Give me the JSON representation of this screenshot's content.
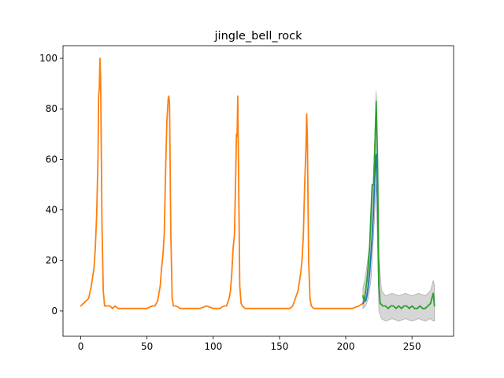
{
  "chart_data": {
    "type": "line",
    "title": "jingle_bell_rock",
    "xlabel": "",
    "ylabel": "",
    "xlim": [
      -13.4,
      281.4
    ],
    "ylim": [
      -10,
      105
    ],
    "xticks": [
      0,
      50,
      100,
      150,
      200,
      250
    ],
    "yticks": [
      0,
      20,
      40,
      60,
      80,
      100
    ],
    "grid": false,
    "colors": {
      "history": "#ff7f0e",
      "actual": "#1f77b4",
      "forecast": "#2ca02c",
      "band": "#bbbbbb"
    },
    "series": [
      {
        "role": "history",
        "x": [
          0,
          2,
          4,
          6,
          8,
          10,
          11,
          12,
          13,
          13.5,
          14,
          14.5,
          15,
          16,
          17,
          18,
          20,
          22,
          24,
          26,
          28,
          30,
          35,
          40,
          45,
          50,
          54,
          56,
          58,
          60,
          61,
          62,
          63,
          64,
          65,
          66,
          66.5,
          67,
          68,
          69,
          70,
          72,
          75,
          80,
          85,
          90,
          95,
          100,
          105,
          108,
          110,
          112,
          113,
          114,
          115,
          116,
          117,
          117.5,
          118,
          118.5,
          119,
          120,
          121,
          122,
          124,
          126,
          130,
          135,
          140,
          145,
          150,
          155,
          158,
          160,
          162,
          164,
          166,
          167,
          168,
          169,
          170,
          170.5,
          171,
          172,
          173,
          174,
          176,
          180,
          185,
          190,
          195,
          200,
          205,
          210,
          213
        ],
        "y": [
          2,
          3,
          4,
          5,
          10,
          17,
          25,
          38,
          60,
          85,
          88,
          100,
          92,
          35,
          8,
          2,
          2,
          2,
          1,
          2,
          1,
          1,
          1,
          1,
          1,
          1,
          2,
          2,
          4,
          10,
          17,
          22,
          30,
          55,
          75,
          84,
          85,
          82,
          30,
          5,
          2,
          2,
          1,
          1,
          1,
          1,
          2,
          1,
          1,
          2,
          2,
          5,
          8,
          15,
          25,
          30,
          55,
          70,
          69,
          85,
          60,
          10,
          3,
          2,
          1,
          1,
          1,
          1,
          1,
          1,
          1,
          1,
          1,
          2,
          5,
          8,
          15,
          20,
          30,
          50,
          65,
          78,
          70,
          20,
          5,
          2,
          1,
          1,
          1,
          1,
          1,
          1,
          1,
          2,
          3
        ]
      },
      {
        "role": "actual",
        "x": [
          213,
          214,
          215,
          216,
          217,
          218,
          219,
          220,
          221,
          222,
          223,
          224,
          225
        ],
        "y": [
          3,
          4,
          4,
          6,
          10,
          15,
          22,
          30,
          40,
          55,
          62,
          45,
          10
        ]
      },
      {
        "role": "forecast",
        "x": [
          213,
          214,
          215,
          216,
          217,
          218,
          219,
          220,
          221,
          222,
          223,
          224,
          225,
          226,
          228,
          230,
          232,
          234,
          236,
          238,
          240,
          242,
          244,
          246,
          248,
          250,
          252,
          254,
          256,
          258,
          260,
          262,
          264,
          266,
          267
        ],
        "y": [
          6,
          4,
          8,
          12,
          18,
          25,
          38,
          50,
          50,
          65,
          83,
          60,
          10,
          3,
          2,
          2,
          1,
          2,
          2,
          1,
          2,
          1,
          2,
          2,
          1,
          2,
          1,
          1,
          2,
          1,
          1,
          2,
          3,
          7,
          2
        ]
      }
    ],
    "band": {
      "x": [
        213,
        215,
        217,
        219,
        221,
        223,
        225,
        227,
        230,
        235,
        240,
        245,
        250,
        255,
        260,
        264,
        266,
        267
      ],
      "upper": [
        9,
        14,
        22,
        32,
        55,
        87,
        22,
        8,
        6,
        7,
        6,
        7,
        6,
        7,
        6,
        8,
        12,
        10
      ],
      "lower": [
        1,
        2,
        5,
        12,
        30,
        50,
        0,
        -3,
        -4,
        -3,
        -4,
        -3,
        -4,
        -3,
        -4,
        -3,
        -4,
        -4
      ]
    }
  }
}
